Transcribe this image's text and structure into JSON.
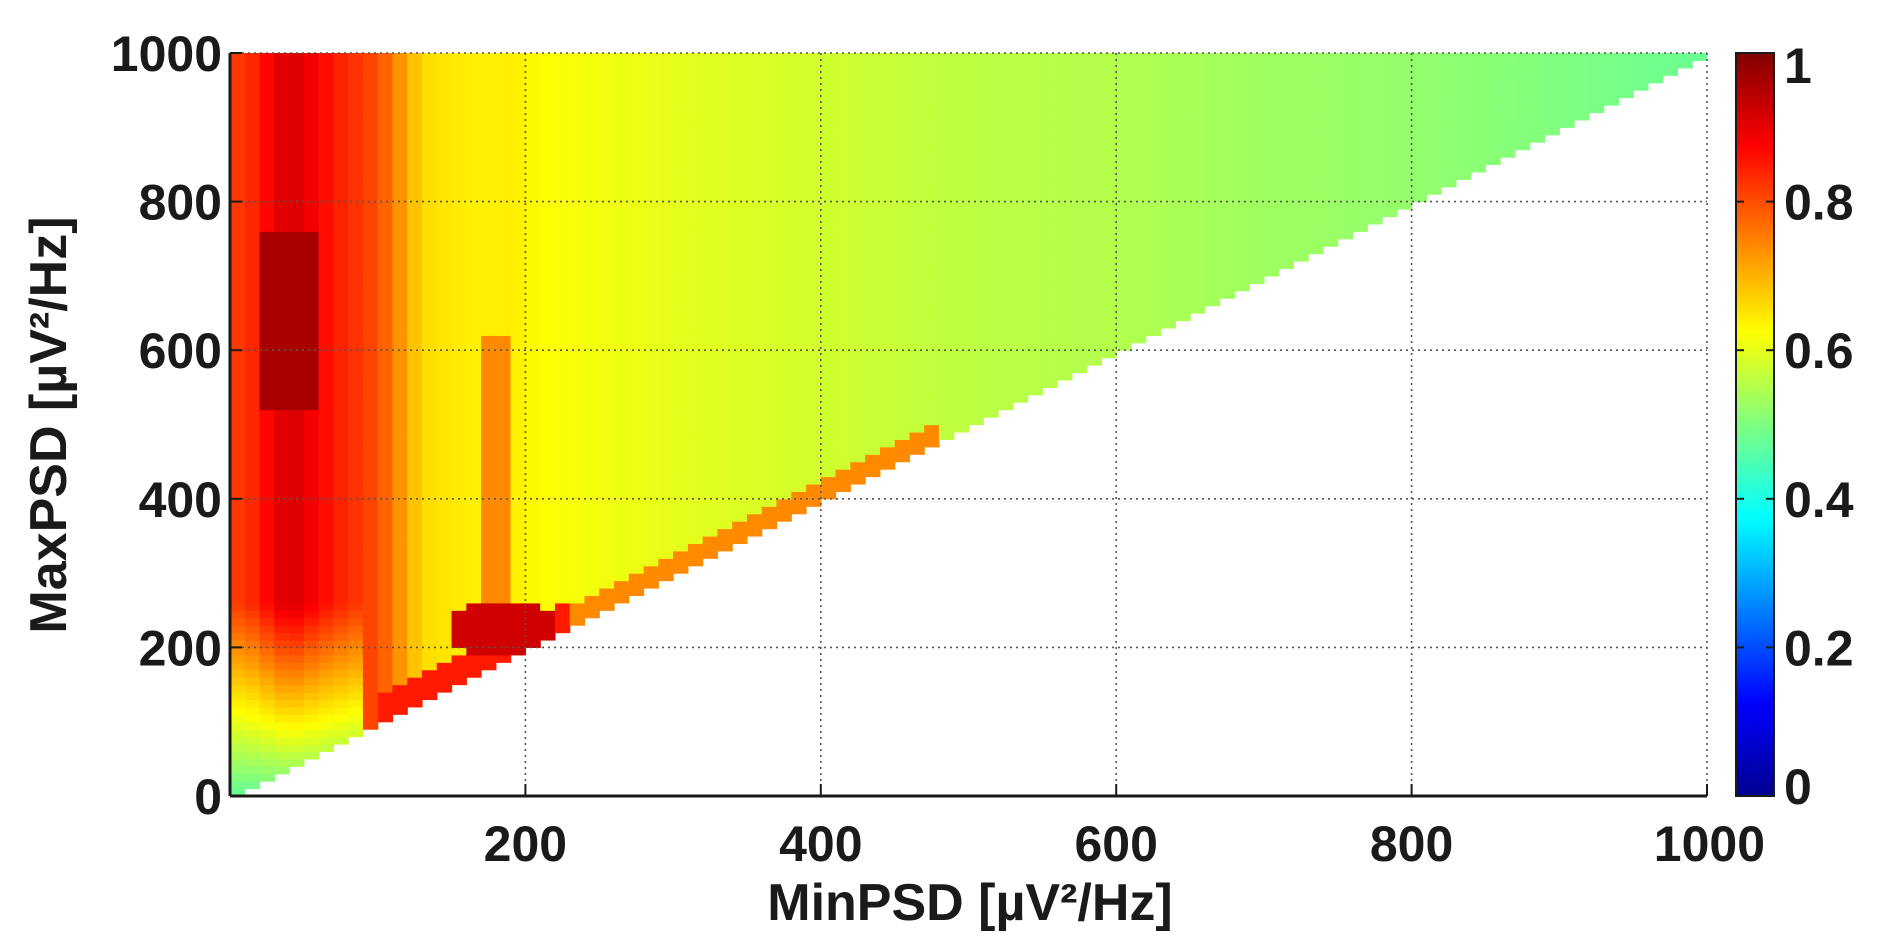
{
  "chart_data": {
    "type": "heatmap",
    "title": "",
    "xlabel": "MinPSD [µV²/Hz]",
    "ylabel": "MaxPSD [µV²/Hz]",
    "xlim": [
      0,
      1000
    ],
    "ylim": [
      0,
      1000
    ],
    "xticks": [
      200,
      400,
      600,
      800,
      1000
    ],
    "yticks": [
      0,
      200,
      400,
      600,
      800,
      1000
    ],
    "x_tick_labels": [
      "200",
      "400",
      "600",
      "800",
      "1000"
    ],
    "y_tick_labels": [
      "0",
      "200",
      "400",
      "600",
      "800",
      "1000"
    ],
    "grid": true,
    "grid_style": "dotted",
    "colormap": "jet",
    "clim": [
      0,
      1
    ],
    "colorbar_ticks": [
      0,
      0.2,
      0.4,
      0.6,
      0.8,
      1
    ],
    "colorbar_tick_labels": [
      "0",
      "0.2",
      "0.4",
      "0.6",
      "0.8",
      "1"
    ],
    "colorbar_position": "right",
    "domain": "upper triangle, MaxPSD >= MinPSD",
    "x_profile": {
      "comment": "approximate value along MinPSD at mid MaxPSD levels",
      "x": [
        10,
        40,
        70,
        100,
        130,
        160,
        190,
        220,
        260,
        300,
        400,
        500,
        600,
        700,
        800,
        900,
        1000
      ],
      "value": [
        0.82,
        0.92,
        0.85,
        0.8,
        0.66,
        0.64,
        0.64,
        0.62,
        0.61,
        0.6,
        0.58,
        0.56,
        0.55,
        0.53,
        0.52,
        0.5,
        0.48
      ]
    }
  }
}
